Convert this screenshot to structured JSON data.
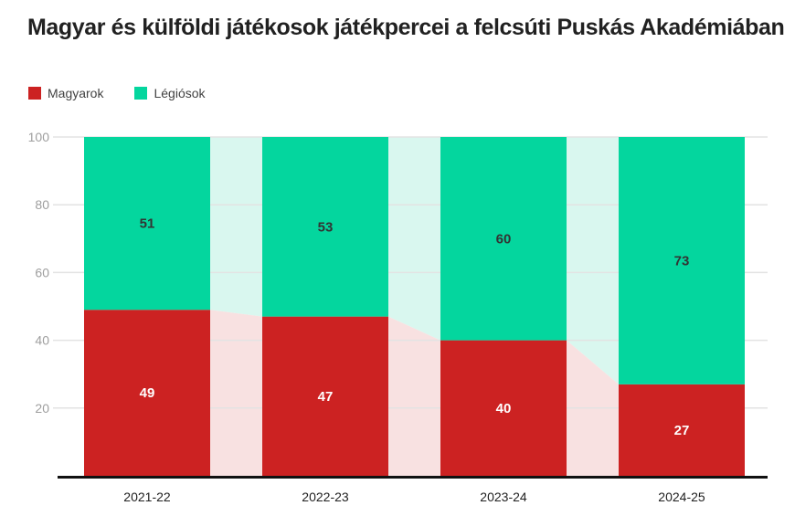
{
  "title": "Magyar és külföldi játékosok játékpercei a felcsúti Puskás Akadémiában",
  "legend": {
    "items": [
      {
        "label": "Magyarok",
        "color": "#CC2222"
      },
      {
        "label": "Légiósok",
        "color": "#04D69E"
      }
    ]
  },
  "chart_data": {
    "type": "bar",
    "variant": "100-percent-stacked-columns-with-pale-area-background",
    "title": "Magyar és külföldi játékosok játékpercei a felcsúti Puskás Akadémiában",
    "categories": [
      "2021-22",
      "2022-23",
      "2023-24",
      "2024-25"
    ],
    "series": [
      {
        "name": "Magyarok",
        "values": [
          49,
          47,
          40,
          27
        ],
        "color": "#CC2222",
        "area_color": "#F8E1E1",
        "label_color": "#FFFFFF"
      },
      {
        "name": "Légiósok",
        "values": [
          51,
          53,
          60,
          73
        ],
        "color": "#04D69E",
        "area_color": "#D9F7EF",
        "label_color": "#333333"
      }
    ],
    "xlabel": "",
    "ylabel": "",
    "ylim": [
      0,
      100
    ],
    "yticks": [
      20,
      40,
      60,
      80,
      100
    ],
    "grid": true,
    "data_labels": true,
    "legend_position": "top-left",
    "colors": {
      "grid_line": "#E3E3E3",
      "y_tick_label": "#9E9E9E",
      "x_tick_label": "#212121",
      "axis_line": "#111111"
    }
  }
}
